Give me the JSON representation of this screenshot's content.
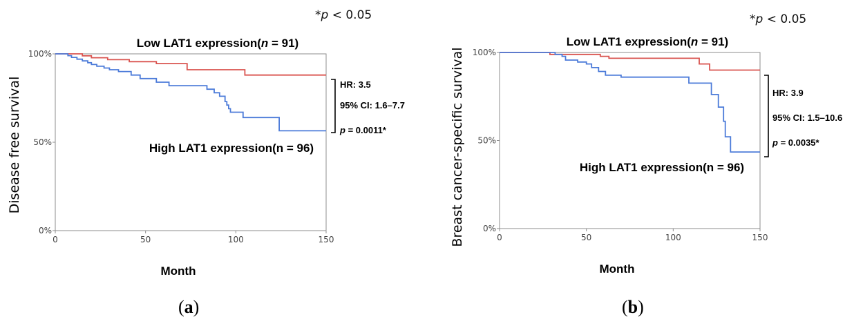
{
  "significance_note": {
    "symbol": "*",
    "p": "p",
    "rest": " < 0.05"
  },
  "chart_data": [
    {
      "type": "line",
      "panel_label": "a",
      "title": {
        "prefix": "Low LAT1 expression(",
        "n_var": "n",
        "n_rest": " = 91)"
      },
      "xlabel": "Month",
      "ylabel": "Disease free survival",
      "xlim": [
        0,
        150
      ],
      "ylim": [
        0,
        100
      ],
      "x_ticks": [
        0,
        50,
        100,
        150
      ],
      "y_ticks": [
        {
          "value": 0,
          "label": "0%"
        },
        {
          "value": 50,
          "label": "50%"
        },
        {
          "value": 100,
          "label": "100%"
        }
      ],
      "grid": false,
      "series": [
        {
          "name": "Low LAT1 expression(n = 91)",
          "color": "#d9534f",
          "steps": [
            [
              0,
              100
            ],
            [
              15,
              98.9
            ],
            [
              20,
              97.8
            ],
            [
              29,
              96.7
            ],
            [
              41,
              95.6
            ],
            [
              56,
              94.5
            ],
            [
              73,
              91.0
            ],
            [
              105,
              88.0
            ],
            [
              150,
              88.0
            ]
          ]
        },
        {
          "name": "High LAT1 expression(n = 96)",
          "color": "#4c7bd9",
          "steps": [
            [
              0,
              100
            ],
            [
              7,
              99
            ],
            [
              9,
              98
            ],
            [
              12,
              97
            ],
            [
              15,
              96
            ],
            [
              18,
              95
            ],
            [
              20,
              94
            ],
            [
              23,
              93
            ],
            [
              27,
              92
            ],
            [
              30,
              91
            ],
            [
              35,
              90
            ],
            [
              42,
              88
            ],
            [
              47,
              86
            ],
            [
              56,
              84
            ],
            [
              63,
              82
            ],
            [
              84,
              80
            ],
            [
              88,
              78
            ],
            [
              91,
              76
            ],
            [
              94,
              73
            ],
            [
              95,
              71
            ],
            [
              96,
              69
            ],
            [
              97,
              67
            ],
            [
              104,
              64
            ],
            [
              124,
              56.5
            ],
            [
              150,
              56.5
            ]
          ]
        }
      ],
      "annotations": {
        "series_label": "High LAT1 expression(n = 96)",
        "hr": "HR: 3.5",
        "ci": "95% CI: 1.6–7.7",
        "p_var": "p",
        "p_rest": " = 0.0011*"
      }
    },
    {
      "type": "line",
      "panel_label": "b",
      "title": {
        "prefix": "Low LAT1 expression(",
        "n_var": "n",
        "n_rest": " = 91)"
      },
      "xlabel": "Month",
      "ylabel": "Breast cancer-specific survival",
      "xlim": [
        0,
        150
      ],
      "ylim": [
        0,
        100
      ],
      "x_ticks": [
        0,
        50,
        100,
        150
      ],
      "y_ticks": [
        {
          "value": 0,
          "label": "0%"
        },
        {
          "value": 50,
          "label": "50%"
        },
        {
          "value": 100,
          "label": "100%"
        }
      ],
      "grid": false,
      "series": [
        {
          "name": "Low LAT1 expression(n = 91)",
          "color": "#d9534f",
          "steps": [
            [
              0,
              100
            ],
            [
              29,
              98.9
            ],
            [
              58,
              97.8
            ],
            [
              63,
              96.7
            ],
            [
              115,
              93.5
            ],
            [
              121,
              90.0
            ],
            [
              150,
              90.0
            ]
          ]
        },
        {
          "name": "High LAT1 expression(n = 96)",
          "color": "#4c7bd9",
          "steps": [
            [
              0,
              100
            ],
            [
              32,
              98.9
            ],
            [
              36,
              97.8
            ],
            [
              38,
              95.7
            ],
            [
              45,
              94.6
            ],
            [
              50,
              93.5
            ],
            [
              53,
              91.4
            ],
            [
              57,
              89.2
            ],
            [
              61,
              87.1
            ],
            [
              70,
              86.0
            ],
            [
              109,
              82.6
            ],
            [
              122,
              76.1
            ],
            [
              126,
              69.0
            ],
            [
              129,
              60.9
            ],
            [
              130,
              52.1
            ],
            [
              133,
              43.5
            ],
            [
              150,
              43.5
            ]
          ]
        }
      ],
      "annotations": {
        "series_label": "High LAT1 expression(n = 96)",
        "hr": "HR: 3.9",
        "ci": "95% CI: 1.5–10.6",
        "p_var": "p",
        "p_rest": " = 0.0035*"
      }
    }
  ]
}
